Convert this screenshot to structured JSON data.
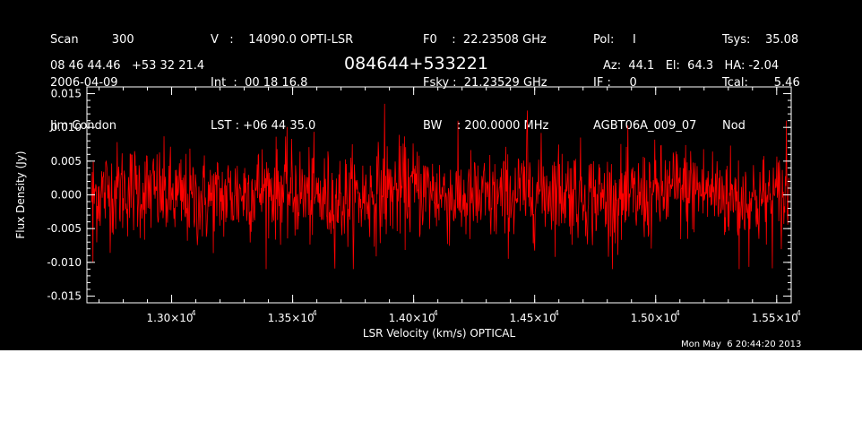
{
  "header": {
    "col1": [
      "Scan         300",
      "2006-04-09",
      "Jim Condon"
    ],
    "col2": [
      "V   :    14090.0 OPTI-LSR",
      "Int  :  00 18 16.8",
      "LST : +06 44 35.0"
    ],
    "col3": [
      "F0    :  22.23508 GHz",
      "Fsky :  21.23529 GHz",
      "BW    : 200.0000 MHz"
    ],
    "col4": [
      "Pol:     I",
      "IF :     0",
      "AGBT06A_009_07"
    ],
    "col5": [
      "Tsys:    35.08",
      "Tcal:       5.46",
      "Nod"
    ],
    "coords": "08 46 44.46   +53 32 21.4",
    "source": "084644+533221",
    "azel": "Az:  44.1   El:  64.3   HA: -2.04",
    "timestamp": "Mon May  6 20:44:20 2013"
  },
  "colors": {
    "background": "#000000",
    "axes": "#ffffff",
    "trace": "#ff0000"
  },
  "chart_data": {
    "type": "line",
    "title": "084644+533221",
    "xlabel": "LSR Velocity (km/s) OPTICAL",
    "ylabel": "Flux Density (Jy)",
    "xlim": [
      12650,
      15560
    ],
    "ylim": [
      -0.016,
      0.016
    ],
    "xticks": [
      {
        "value": 13000,
        "mantissa": "1.30",
        "exp": "4"
      },
      {
        "value": 13500,
        "mantissa": "1.35",
        "exp": "4"
      },
      {
        "value": 14000,
        "mantissa": "1.40",
        "exp": "4"
      },
      {
        "value": 14500,
        "mantissa": "1.45",
        "exp": "4"
      },
      {
        "value": 15000,
        "mantissa": "1.50",
        "exp": "4"
      },
      {
        "value": 15500,
        "mantissa": "1.55",
        "exp": "4"
      }
    ],
    "tick_times_sign": "×10",
    "yticks": [
      {
        "value": 0.015,
        "label": "0.015"
      },
      {
        "value": 0.01,
        "label": "0.010"
      },
      {
        "value": 0.005,
        "label": "0.005"
      },
      {
        "value": 0.0,
        "label": "0.000"
      },
      {
        "value": -0.005,
        "label": "-0.005"
      },
      {
        "value": -0.01,
        "label": "-0.010"
      },
      {
        "value": -0.015,
        "label": "-0.015"
      }
    ],
    "series": [
      {
        "x_start": 12670,
        "x_end": 15550,
        "points": 1400,
        "mean": 0.0,
        "rms": 0.0035,
        "envelope_min": -0.011,
        "envelope_max": 0.014,
        "notable_points": [
          {
            "x": 12675,
            "y": -0.01
          },
          {
            "x": 13880,
            "y": 0.0135
          },
          {
            "x": 14470,
            "y": 0.0125
          },
          {
            "x": 15345,
            "y": -0.011
          },
          {
            "x": 15540,
            "y": 0.011
          }
        ]
      }
    ],
    "grid": false
  }
}
